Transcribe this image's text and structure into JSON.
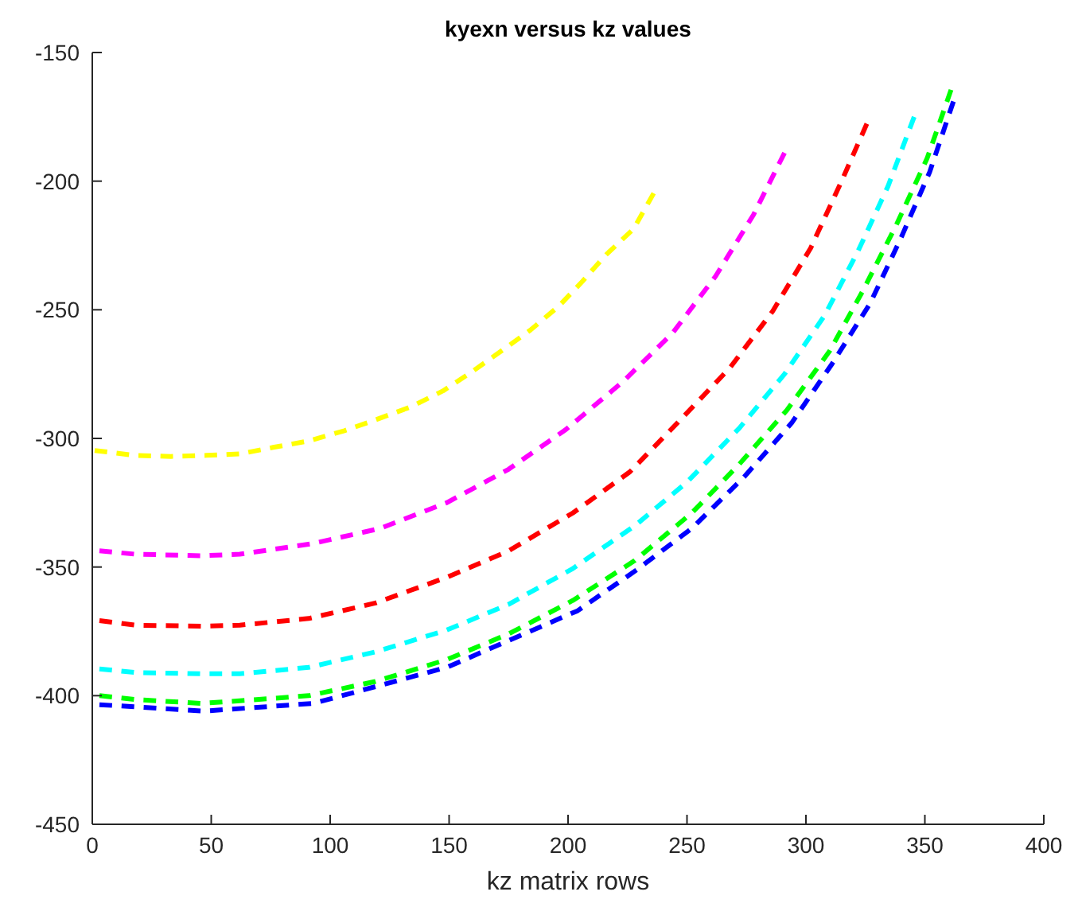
{
  "chart_data": {
    "type": "line",
    "title": "kyexn versus kz values",
    "xlabel": "kz matrix rows",
    "xlim": [
      0,
      400
    ],
    "ylim": [
      -450,
      -150
    ],
    "xticks": [
      0,
      50,
      100,
      150,
      200,
      250,
      300,
      350,
      400
    ],
    "yticks": [
      -450,
      -400,
      -350,
      -300,
      -250,
      -200,
      -150
    ],
    "line_style": "dashed",
    "marker": "none",
    "grid": false,
    "series": [
      {
        "color": "#ffff00",
        "x": [
          1,
          18,
          33,
          48,
          62,
          76,
          91,
          106,
          119,
          134,
          147.5,
          159,
          172,
          184,
          196,
          206,
          216,
          227.6,
          236
        ],
        "values": [
          -304.7,
          -306.6,
          -307,
          -306.6,
          -306,
          -303.5,
          -301,
          -297,
          -292.8,
          -287.7,
          -281.5,
          -274.5,
          -266,
          -258,
          -248.7,
          -239,
          -228.6,
          -218.5,
          -204.7
        ]
      },
      {
        "color": "#ff00ff",
        "x": [
          3,
          18,
          46,
          62,
          92,
          121,
          149,
          175,
          199,
          223,
          244,
          262,
          278,
          291
        ],
        "values": [
          -343.7,
          -345,
          -345.6,
          -345,
          -341,
          -335,
          -325,
          -312,
          -296.6,
          -278,
          -259,
          -237,
          -213,
          -189
        ]
      },
      {
        "color": "#ff0000",
        "x": [
          3,
          18,
          46,
          62,
          91,
          119,
          149,
          175,
          202,
          226,
          247,
          268,
          286,
          302,
          315,
          325.6
        ],
        "values": [
          -370.8,
          -372.6,
          -373,
          -372.6,
          -370,
          -364,
          -354,
          -343.7,
          -329,
          -313,
          -293,
          -272.6,
          -250.6,
          -226,
          -200,
          -177.7
        ]
      },
      {
        "color": "#00ffff",
        "x": [
          3,
          18,
          46,
          62,
          91,
          119,
          149,
          175,
          202,
          228,
          250,
          272,
          291,
          308,
          322,
          334.5,
          345.5
        ],
        "values": [
          -389.6,
          -391,
          -391.5,
          -391.5,
          -389,
          -383,
          -374.5,
          -364.5,
          -350.6,
          -334,
          -317,
          -296,
          -275,
          -252,
          -227,
          -202,
          -175
        ]
      },
      {
        "color": "#00ff00",
        "x": [
          3,
          18,
          46,
          62,
          91,
          119,
          149,
          175,
          202,
          228,
          252,
          272,
          292,
          310,
          324,
          338,
          351,
          361
        ],
        "values": [
          -400,
          -401.5,
          -403,
          -402,
          -400,
          -394.5,
          -386,
          -376,
          -363,
          -347.5,
          -329,
          -310,
          -289,
          -266,
          -242.5,
          -217,
          -191,
          -164.5
        ]
      },
      {
        "color": "#0000ff",
        "x": [
          3,
          47,
          93,
          149,
          204,
          229,
          252,
          274,
          294,
          311,
          327,
          340,
          352,
          362
        ],
        "values": [
          -403.5,
          -406,
          -403,
          -389,
          -367,
          -351,
          -335,
          -315,
          -294,
          -271,
          -247.5,
          -222,
          -196.5,
          -169
        ]
      }
    ]
  }
}
